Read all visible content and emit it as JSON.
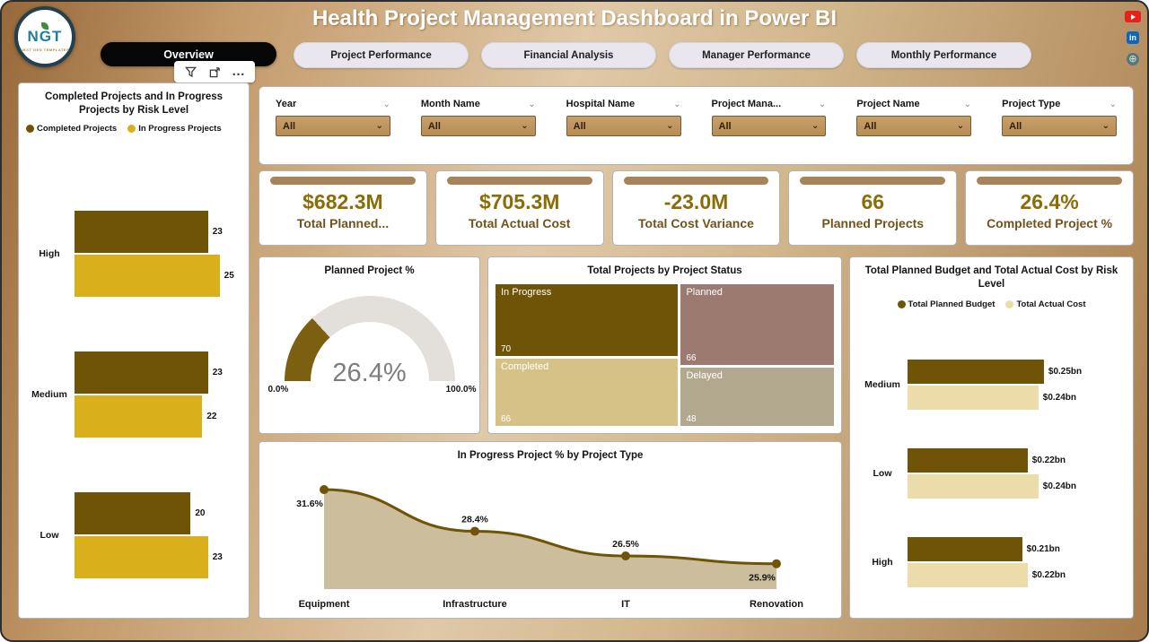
{
  "header": {
    "title": "Health Project Management Dashboard in Power BI",
    "logo": {
      "text": "NGT",
      "subtext": "NEXT GEN TEMPLATES"
    }
  },
  "icons": {
    "chevron_down": "⌄",
    "more": "…",
    "linkedin_text": "in",
    "globe_glyph": "⊕"
  },
  "nav": {
    "active_index": 0,
    "tabs": [
      "Overview",
      "Project Performance",
      "Financial Analysis",
      "Manager Performance",
      "Monthly Performance"
    ]
  },
  "filters": [
    {
      "label": "Year",
      "value": "All"
    },
    {
      "label": "Month Name",
      "value": "All"
    },
    {
      "label": "Hospital Name",
      "value": "All"
    },
    {
      "label": "Project Mana...",
      "value": "All"
    },
    {
      "label": "Project Name",
      "value": "All"
    },
    {
      "label": "Project Type",
      "value": "All"
    }
  ],
  "kpis": [
    {
      "value": "$682.3M",
      "label": "Total Planned..."
    },
    {
      "value": "$705.3M",
      "label": "Total Actual Cost"
    },
    {
      "value": "-23.0M",
      "label": "Total Cost Variance"
    },
    {
      "value": "66",
      "label": "Planned Projects"
    },
    {
      "value": "26.4%",
      "label": "Completed Project %"
    }
  ],
  "chart_data": [
    {
      "id": "risk-bars",
      "type": "bar",
      "orientation": "horizontal",
      "title": "Completed Projects and In Progress Projects by Risk Level",
      "categories": [
        "High",
        "Medium",
        "Low"
      ],
      "series": [
        {
          "name": "Completed Projects",
          "color": "#6f5408",
          "values": [
            23,
            23,
            20
          ]
        },
        {
          "name": "In Progress Projects",
          "color": "#d9af1b",
          "values": [
            25,
            22,
            23
          ]
        }
      ],
      "xlim": [
        0,
        25
      ],
      "legend_position": "top-left"
    },
    {
      "id": "planned-gauge",
      "type": "gauge",
      "title": "Planned Project %",
      "value": 26.4,
      "value_label": "26.4%",
      "min": 0,
      "max": 100,
      "min_label": "0.0%",
      "max_label": "100.0%",
      "fill_color": "#7d5f11",
      "track_color": "#e3e0db"
    },
    {
      "id": "status-treemap",
      "type": "treemap",
      "title": "Total Projects by Project Status",
      "items": [
        {
          "label": "In Progress",
          "value": 70,
          "color": "#6f5408"
        },
        {
          "label": "Planned",
          "value": 66,
          "color": "#9c7a70"
        },
        {
          "label": "Completed",
          "value": 66,
          "color": "#d6c287"
        },
        {
          "label": "Delayed",
          "value": 48,
          "color": "#b2a88e"
        }
      ]
    },
    {
      "id": "budget-bars",
      "type": "bar",
      "orientation": "horizontal",
      "title": "Total Planned Budget and Total Actual Cost by Risk Level",
      "categories": [
        "Medium",
        "Low",
        "High"
      ],
      "series": [
        {
          "name": "Total Planned Budget",
          "color": "#6f5408",
          "values": [
            0.25,
            0.22,
            0.21
          ],
          "labels": [
            "$0.25bn",
            "$0.22bn",
            "$0.21bn"
          ]
        },
        {
          "name": "Total Actual Cost",
          "color": "#ecdcaa",
          "values": [
            0.24,
            0.24,
            0.22
          ],
          "labels": [
            "$0.24bn",
            "$0.24bn",
            "$0.22bn"
          ]
        }
      ],
      "xlim": [
        0,
        0.25
      ],
      "legend_position": "top-center"
    },
    {
      "id": "progress-area",
      "type": "area",
      "title": "In Progress Project % by Project Type",
      "categories": [
        "Equipment",
        "Infrastructure",
        "IT",
        "Renovation"
      ],
      "values": [
        31.6,
        28.4,
        26.5,
        25.9
      ],
      "labels": [
        "31.6%",
        "28.4%",
        "26.5%",
        "25.9%"
      ],
      "label_positions": [
        "below",
        "above",
        "above",
        "below"
      ],
      "line_color": "#6f5408",
      "fill_color": "#c9bb98"
    }
  ]
}
